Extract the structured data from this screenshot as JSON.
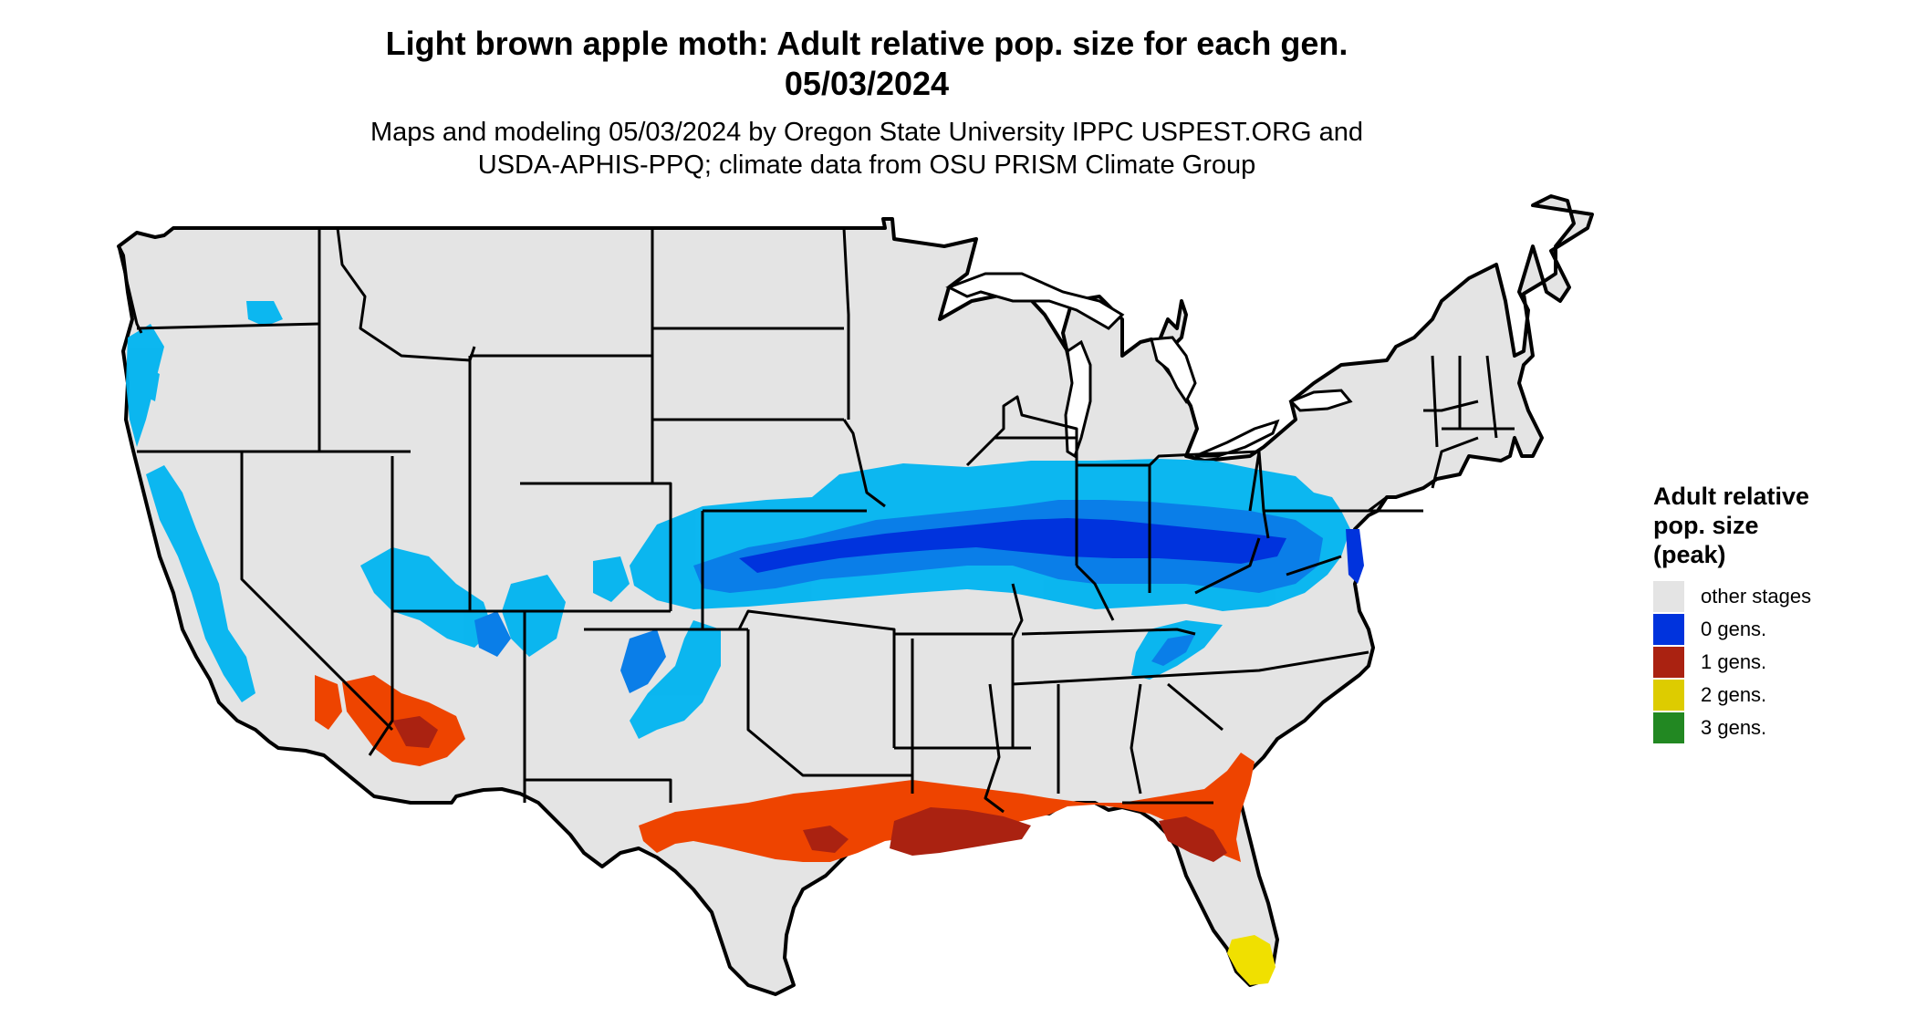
{
  "title": {
    "line1": "Light brown apple moth: Adult relative pop. size for each gen.",
    "line2": "05/03/2024"
  },
  "subtitle": {
    "line1": "Maps and modeling 05/03/2024 by Oregon State University IPPC USPEST.ORG and",
    "line2": "USDA-APHIS-PPQ; climate data from OSU PRISM Climate Group"
  },
  "legend": {
    "title_line1": "Adult relative",
    "title_line2": "pop. size",
    "title_line3": "(peak)",
    "items": [
      {
        "label": "other stages",
        "color": "#e4e4e4"
      },
      {
        "label": "0 gens.",
        "color": "#0033dd"
      },
      {
        "label": "1 gens.",
        "color": "#aa2211"
      },
      {
        "label": "2 gens.",
        "color": "#ddcc00"
      },
      {
        "label": "3 gens.",
        "color": "#228822"
      }
    ]
  },
  "map": {
    "region": "contiguous-united-states",
    "colors": {
      "land": "#e4e4e4",
      "border": "#000000",
      "light_blue": "#00b4f0",
      "mid_blue": "#0a7ee8",
      "dark_blue": "#0033dd",
      "orange_red": "#ee4400",
      "dark_red": "#aa2211",
      "yellow": "#f0e000"
    }
  }
}
